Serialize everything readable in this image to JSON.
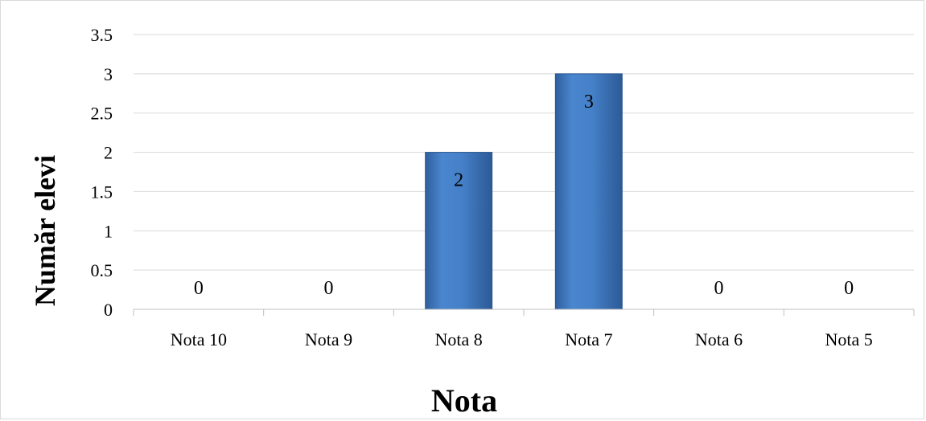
{
  "chart_data": {
    "type": "bar",
    "categories": [
      "Nota 10",
      "Nota 9",
      "Nota 8",
      "Nota 7",
      "Nota 6",
      "Nota 5"
    ],
    "values": [
      0,
      0,
      2,
      3,
      0,
      0
    ],
    "data_labels": [
      "0",
      "0",
      "2",
      "3",
      "0",
      "0"
    ],
    "title": "",
    "xlabel": "Nota",
    "ylabel": "Număr elevi",
    "ylim": [
      0,
      3.5
    ],
    "yticks": [
      "0",
      "0.5",
      "1",
      "1.5",
      "2",
      "2.5",
      "3",
      "3.5"
    ],
    "grid": true,
    "legend": "none",
    "bar_color": "#3b72b8"
  }
}
